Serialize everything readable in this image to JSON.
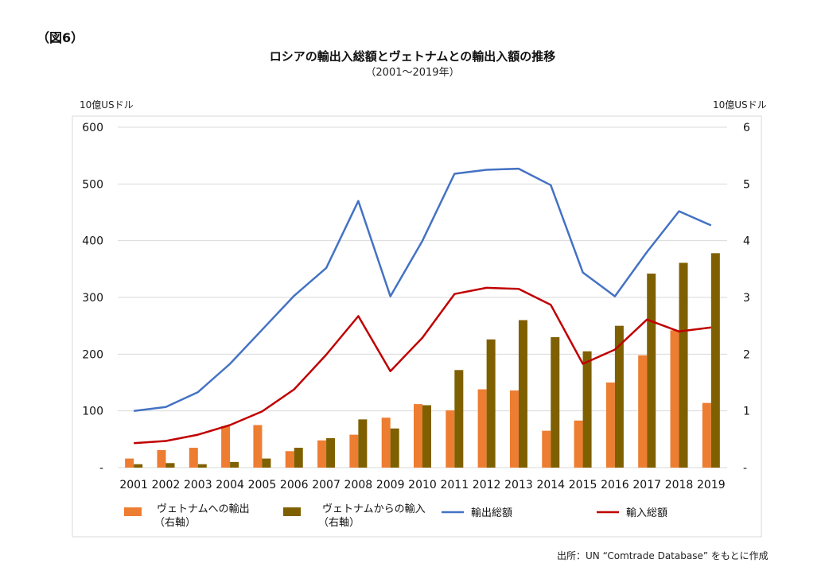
{
  "figure_label": "（図6）",
  "title": "ロシアの輸出入総額とヴェトナムとの輸出入額の推移",
  "subtitle": "（2001～2019年）",
  "units": {
    "left": "10億USドル",
    "right": "10億USドル"
  },
  "source": "出所：UN “Comtrade Database” をもとに作成",
  "legend": {
    "exports_vn_line1": "ヴェトナムへの輸出",
    "exports_vn_line2": "（右軸）",
    "imports_vn_line1": "ヴェトナムからの輸入",
    "imports_vn_line2": "（右軸）",
    "total_exports": "輸出総額",
    "total_imports": "輸入総額"
  },
  "chart_data": {
    "type": "bar",
    "categories": [
      "2001",
      "2002",
      "2003",
      "2004",
      "2005",
      "2006",
      "2007",
      "2008",
      "2009",
      "2010",
      "2011",
      "2012",
      "2013",
      "2014",
      "2015",
      "2016",
      "2017",
      "2018",
      "2019"
    ],
    "left_axis": {
      "ylim": [
        0,
        600
      ],
      "ticks": [
        "-",
        "100",
        "200",
        "300",
        "400",
        "500",
        "600"
      ]
    },
    "right_axis": {
      "ylim": [
        0,
        6
      ],
      "ticks": [
        "-",
        "1",
        "2",
        "3",
        "4",
        "5",
        "6"
      ]
    },
    "series": [
      {
        "name": "ヴェトナムへの輸出（右軸）",
        "kind": "bar",
        "axis": "right",
        "color": "#ED7D31",
        "values": [
          0.16,
          0.31,
          0.35,
          0.73,
          0.75,
          0.29,
          0.48,
          0.58,
          0.88,
          1.12,
          1.01,
          1.38,
          1.36,
          0.65,
          0.83,
          1.5,
          1.98,
          2.42,
          1.14
        ]
      },
      {
        "name": "ヴェトナムからの輸入（右軸）",
        "kind": "bar",
        "axis": "right",
        "color": "#7F6000",
        "values": [
          0.06,
          0.08,
          0.06,
          0.1,
          0.16,
          0.35,
          0.52,
          0.85,
          0.69,
          1.1,
          1.72,
          2.26,
          2.6,
          2.3,
          2.05,
          2.5,
          3.42,
          3.61,
          3.78
        ]
      },
      {
        "name": "輸出総額",
        "kind": "line",
        "axis": "left",
        "color": "#4472C4",
        "values": [
          100,
          107,
          133,
          183,
          243,
          303,
          352,
          470,
          302,
          400,
          518,
          525,
          527,
          498,
          344,
          302,
          380,
          452,
          427
        ]
      },
      {
        "name": "輸入総額",
        "kind": "line",
        "axis": "left",
        "color": "#C00000",
        "values": [
          43,
          47,
          58,
          75,
          99,
          138,
          199,
          267,
          170,
          229,
          306,
          317,
          315,
          287,
          183,
          208,
          261,
          240,
          247
        ]
      }
    ]
  }
}
